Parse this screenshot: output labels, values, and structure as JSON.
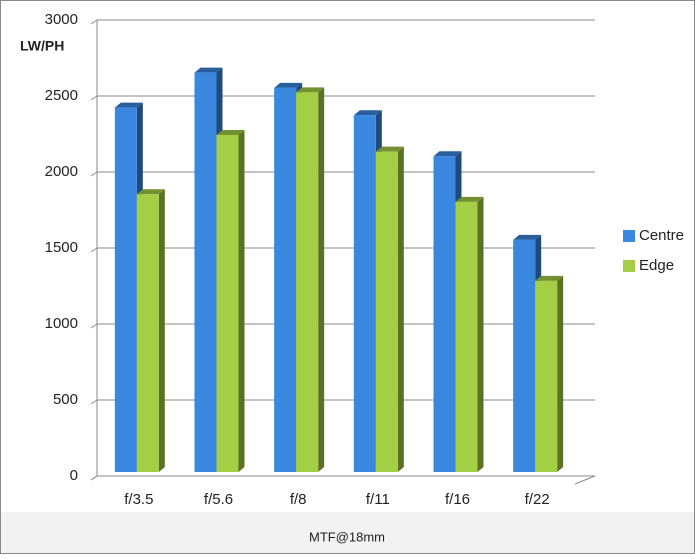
{
  "chart_data": {
    "type": "bar",
    "y_label": "LW/PH",
    "x_label": "MTF@18mm",
    "categories": [
      "f/3.5",
      "f/5.6",
      "f/8",
      "f/11",
      "f/16",
      "f/22"
    ],
    "series": [
      {
        "name": "Centre",
        "color": "#3a87e0",
        "values": [
          2450,
          2680,
          2580,
          2400,
          2130,
          1580
        ]
      },
      {
        "name": "Edge",
        "color": "#a4cf44",
        "values": [
          1880,
          2270,
          2550,
          2160,
          1830,
          1310
        ]
      }
    ],
    "ylim": [
      0,
      3000
    ],
    "yticks": [
      0,
      500,
      1000,
      1500,
      2000,
      2500,
      3000
    ],
    "grid": true,
    "legend": "right"
  }
}
